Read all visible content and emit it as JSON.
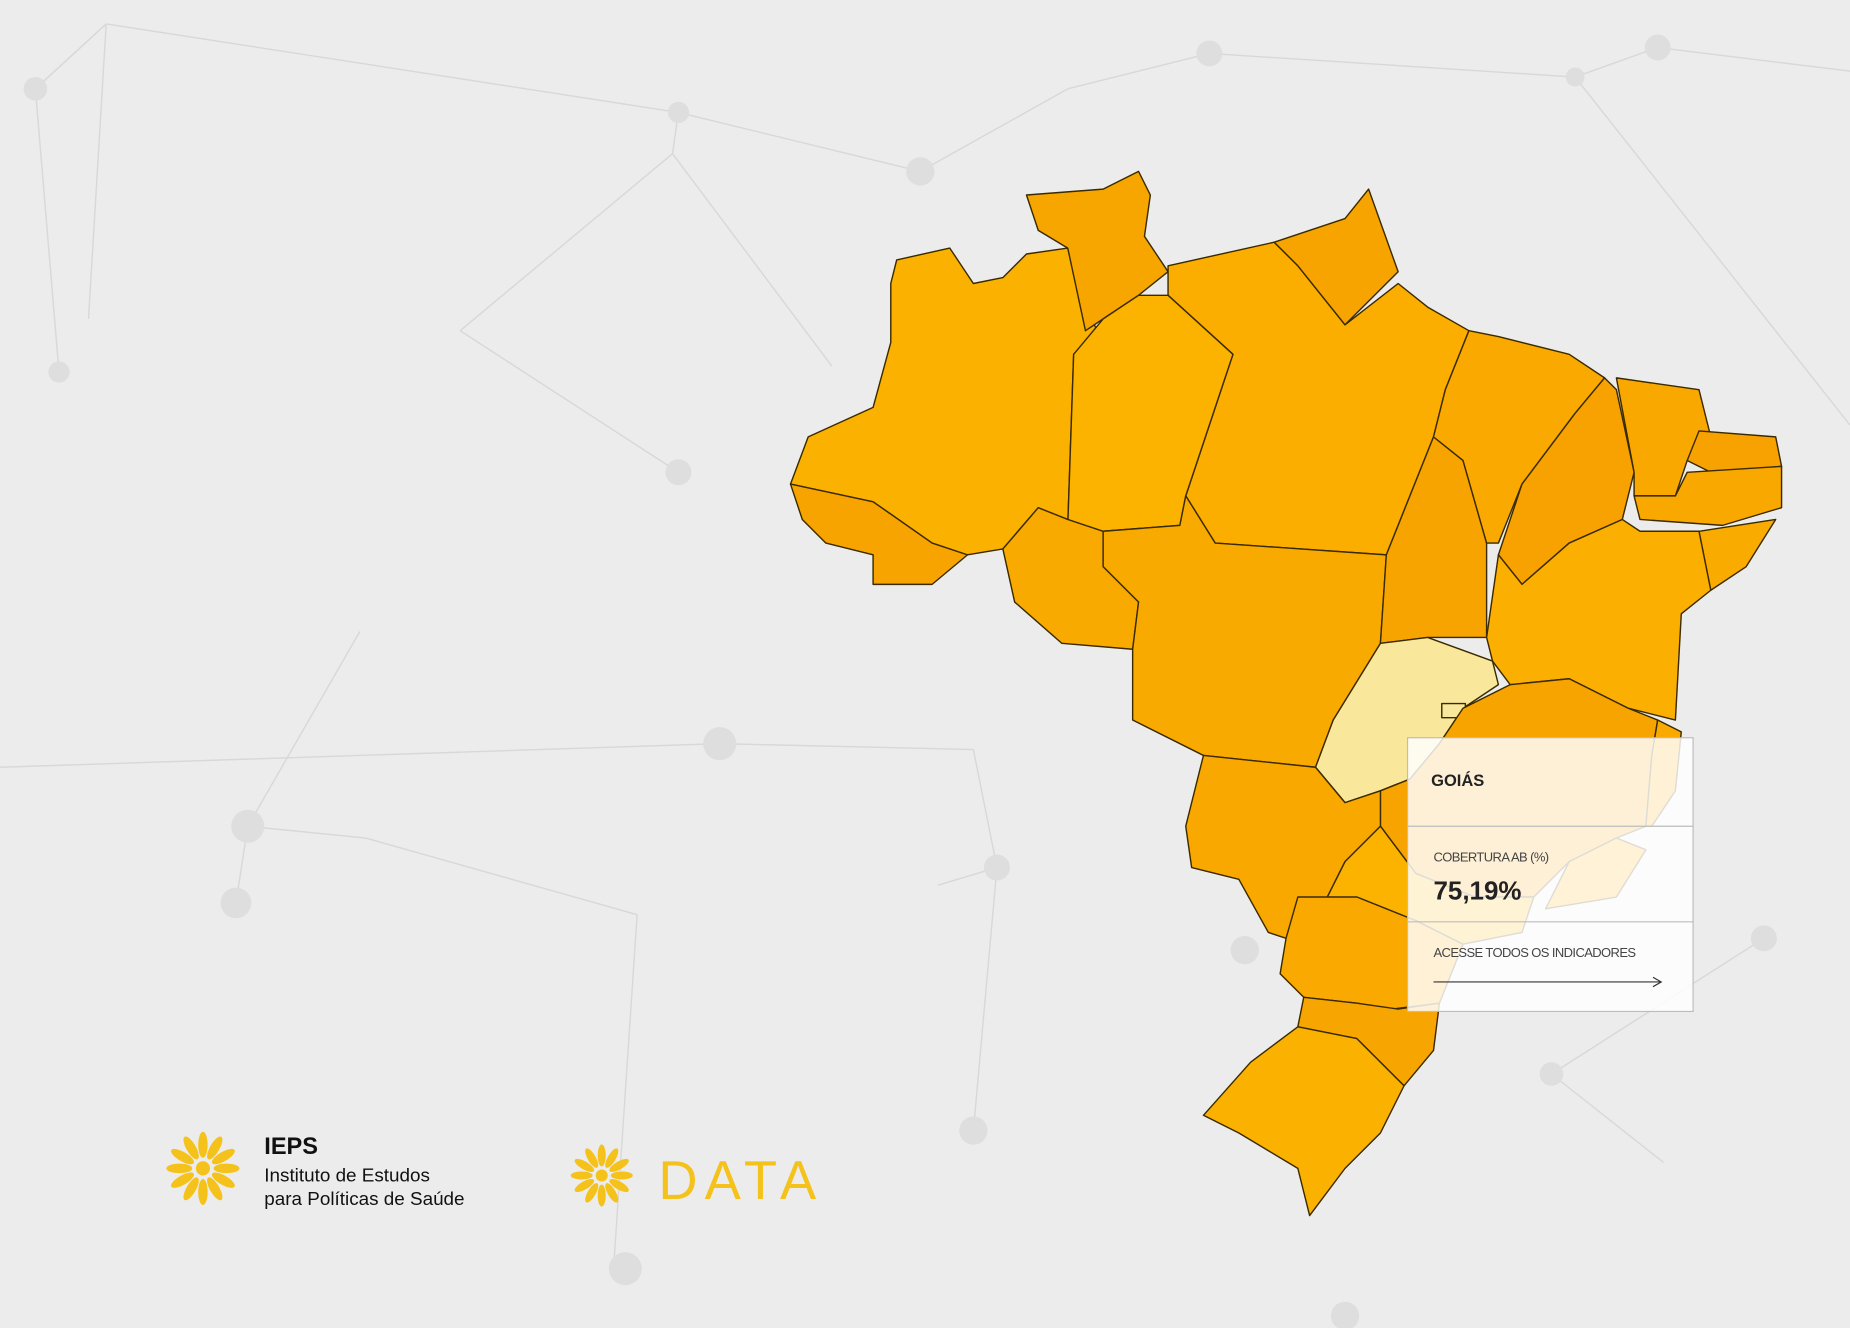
{
  "tooltip": {
    "state": "GOIÁS",
    "indicator_label": "COBERTURA AB (%)",
    "indicator_value": "75,19%",
    "link": "ACESSE TODOS OS INDICADORES"
  },
  "logos": {
    "ieps_name": "IEPS",
    "ieps_line1": "Instituto de Estudos",
    "ieps_line2": "para Políticas de Saúde",
    "data_name": "DATA"
  }
}
